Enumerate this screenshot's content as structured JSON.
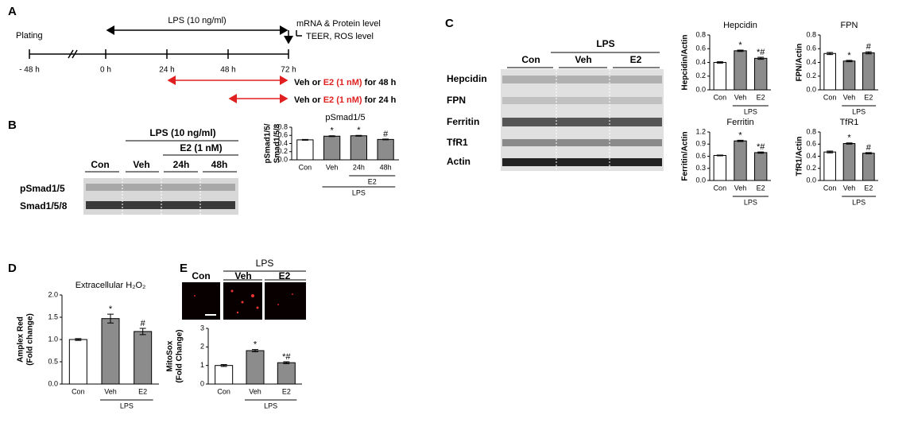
{
  "panels": {
    "a": "A",
    "b": "B",
    "c": "C",
    "d": "D",
    "e": "E"
  },
  "timeline": {
    "plating": "Plating",
    "lps": "LPS (10 ng/ml)",
    "readout": [
      "mRNA & Protein level",
      "TEER, ROS level"
    ],
    "ticks": [
      "- 48 h",
      "0 h",
      "24 h",
      "48 h",
      "72 h"
    ],
    "treatments": [
      {
        "prefix": "Veh or",
        "highlight": "E2 (1 nM)",
        "suffix": "for 48 h"
      },
      {
        "prefix": "Veh or",
        "highlight": "E2 (1 nM)",
        "suffix": "for 24 h"
      }
    ]
  },
  "blot_b": {
    "treatment": "LPS (10 ng/ml)",
    "subtreatment": "E2 (1 nM)",
    "lanes": [
      "Con",
      "Veh",
      "24h",
      "48h"
    ],
    "rows": [
      "pSmad1/5",
      "Smad1/5/8"
    ]
  },
  "blot_c": {
    "treatment": "LPS",
    "lanes": [
      "Con",
      "Veh",
      "E2"
    ],
    "rows": [
      "Hepcidin",
      "FPN",
      "Ferritin",
      "TfR1",
      "Actin"
    ]
  },
  "image_e": {
    "treatment": "LPS",
    "lanes": [
      "Con",
      "Veh",
      "E2"
    ]
  },
  "chart_data": [
    {
      "type": "bar",
      "title": "pSmad1/5",
      "ylabel": [
        "pSmad1/5/",
        "Smad1/5/8"
      ],
      "categories": [
        "Con",
        "Veh",
        "24h",
        "48h"
      ],
      "values": [
        0.49,
        0.58,
        0.59,
        0.5
      ],
      "errors": [
        0.01,
        0.01,
        0.01,
        0.01
      ],
      "colors": [
        "#ffffff",
        "#8c8c8c",
        "#8c8c8c",
        "#8c8c8c"
      ],
      "annotations": [
        null,
        "*",
        "*",
        "#"
      ],
      "group_labels": [
        "E2",
        "LPS"
      ],
      "ylim": [
        0,
        0.8
      ],
      "yticks": [
        {
          "value": 0,
          "label": "0.0"
        },
        0.2,
        0.4,
        0.6,
        0.8
      ]
    },
    {
      "type": "bar",
      "title": "Hepcidin",
      "ylabel": [
        "Hepcidin/Actin"
      ],
      "categories": [
        "Con",
        "Veh",
        "E2"
      ],
      "values": [
        0.4,
        0.57,
        0.46
      ],
      "errors": [
        0.01,
        0.01,
        0.015
      ],
      "colors": [
        "#ffffff",
        "#8c8c8c",
        "#8c8c8c"
      ],
      "annotations": [
        null,
        "*",
        "*#"
      ],
      "group_labels": [
        "LPS"
      ],
      "ylim": [
        0,
        0.8
      ],
      "yticks": [
        {
          "value": 0,
          "label": "0.0"
        },
        0.2,
        0.4,
        0.6,
        0.8
      ]
    },
    {
      "type": "bar",
      "title": "FPN",
      "ylabel": [
        "FPN/Actin"
      ],
      "categories": [
        "Con",
        "Veh",
        "E2"
      ],
      "values": [
        0.53,
        0.42,
        0.54
      ],
      "errors": [
        0.015,
        0.01,
        0.015
      ],
      "colors": [
        "#ffffff",
        "#8c8c8c",
        "#8c8c8c"
      ],
      "annotations": [
        null,
        "*",
        "#"
      ],
      "group_labels": [
        "LPS"
      ],
      "ylim": [
        0,
        0.8
      ],
      "yticks": [
        {
          "value": 0,
          "label": "0.0"
        },
        0.2,
        0.4,
        0.6,
        0.8
      ]
    },
    {
      "type": "bar",
      "title": "Ferritin",
      "ylabel": [
        "Ferritin/Actin"
      ],
      "categories": [
        "Con",
        "Veh",
        "E2"
      ],
      "values": [
        0.62,
        0.98,
        0.69
      ],
      "errors": [
        0.01,
        0.015,
        0.015
      ],
      "colors": [
        "#ffffff",
        "#8c8c8c",
        "#8c8c8c"
      ],
      "annotations": [
        null,
        "*",
        "*#"
      ],
      "group_labels": [
        "LPS"
      ],
      "ylim": [
        0,
        1.2
      ],
      "yticks": [
        {
          "value": 0,
          "label": "0.0"
        },
        0.3,
        0.6,
        0.9,
        1.2
      ]
    },
    {
      "type": "bar",
      "title": "TfR1",
      "ylabel": [
        "TfR1/Actin"
      ],
      "categories": [
        "Con",
        "Veh",
        "E2"
      ],
      "values": [
        0.47,
        0.61,
        0.45
      ],
      "errors": [
        0.015,
        0.01,
        0.01
      ],
      "colors": [
        "#ffffff",
        "#8c8c8c",
        "#8c8c8c"
      ],
      "annotations": [
        null,
        "*",
        "#"
      ],
      "group_labels": [
        "LPS"
      ],
      "ylim": [
        0,
        0.8
      ],
      "yticks": [
        {
          "value": 0,
          "label": "0.0"
        },
        0.2,
        0.4,
        0.6,
        0.8
      ]
    },
    {
      "type": "bar",
      "title": "Extracellular H₂O₂",
      "ylabel": [
        "Amplex Red",
        "(Fold change)"
      ],
      "categories": [
        "Con",
        "Veh",
        "E2"
      ],
      "values": [
        1.0,
        1.47,
        1.18
      ],
      "errors": [
        0.02,
        0.1,
        0.07
      ],
      "colors": [
        "#ffffff",
        "#8c8c8c",
        "#8c8c8c"
      ],
      "annotations": [
        null,
        "*",
        "#"
      ],
      "group_labels": [
        "LPS"
      ],
      "ylim": [
        0,
        2
      ],
      "yticks": [
        {
          "value": 0,
          "label": "0.0"
        },
        0.5,
        {
          "value": 1,
          "label": "1.0"
        },
        1.5,
        {
          "value": 2,
          "label": "2.0"
        }
      ]
    },
    {
      "type": "bar",
      "ylabel": [
        "MitoSox",
        "(Fold Change)"
      ],
      "categories": [
        "Con",
        "Veh",
        "E2"
      ],
      "values": [
        1.0,
        1.8,
        1.15
      ],
      "errors": [
        0.05,
        0.06,
        0.05
      ],
      "colors": [
        "#ffffff",
        "#8c8c8c",
        "#8c8c8c"
      ],
      "annotations": [
        null,
        "*",
        "*#"
      ],
      "group_labels": [
        "LPS"
      ],
      "ylim": [
        0,
        3
      ],
      "yticks": [
        0,
        1,
        2,
        3
      ]
    }
  ]
}
